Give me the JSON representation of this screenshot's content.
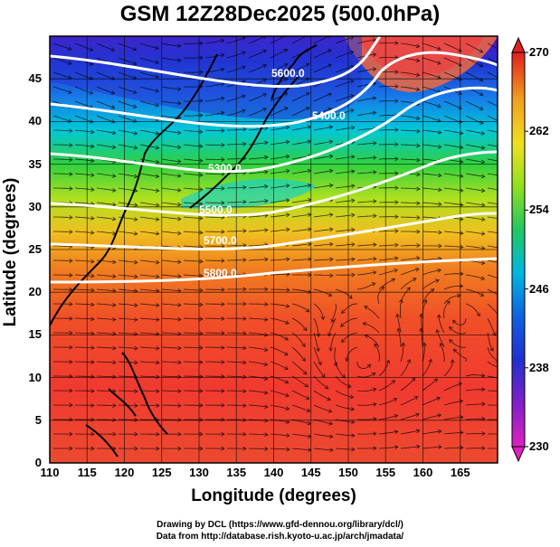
{
  "title": "GSM 12Z28Dec2025 (500.0hPa)",
  "x_axis": {
    "label": "Longitude (degrees)",
    "ticks": [
      "110",
      "115",
      "120",
      "125",
      "130",
      "135",
      "140",
      "145",
      "150",
      "155",
      "160",
      "165"
    ],
    "range": [
      110,
      170
    ]
  },
  "y_axis": {
    "label": "Latitude  (degrees)",
    "ticks": [
      "0",
      "5",
      "10",
      "15",
      "20",
      "25",
      "30",
      "35",
      "40",
      "45"
    ],
    "range": [
      0,
      50
    ]
  },
  "colorbar": {
    "ticks": [
      "230",
      "238",
      "246",
      "254",
      "262",
      "270"
    ],
    "range": [
      230,
      270
    ],
    "colors": [
      "#e020c0",
      "#4020d0",
      "#1060e0",
      "#00b0e0",
      "#20d060",
      "#90e020",
      "#f0e020",
      "#f0a020",
      "#f06020",
      "#e02020"
    ]
  },
  "contours": [
    {
      "label": "5600.0"
    },
    {
      "label": "5400.0"
    },
    {
      "label": "5500.0"
    },
    {
      "label": "5700.0"
    },
    {
      "label": "5800.0"
    },
    {
      "label": "5300.0"
    }
  ],
  "credit": {
    "line1": "Drawing by DCL (https://www.gfd-dennou.org/library/dcl/)",
    "line2": "Data from http://database.rish.kyoto-u.ac.jp/arch/jmadata/"
  }
}
